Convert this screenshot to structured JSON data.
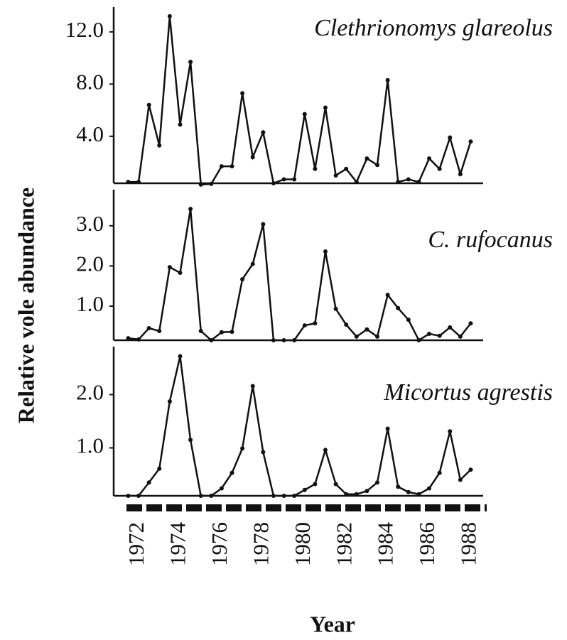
{
  "ylabel": "Relative vole abundance",
  "chart_data": [
    {
      "type": "line",
      "title": "Clethrionomys glareolus",
      "color": "#111111",
      "x": [
        1971.5,
        1972,
        1972.5,
        1973,
        1973.5,
        1974,
        1974.5,
        1975,
        1975.5,
        1976,
        1976.5,
        1977,
        1977.5,
        1978,
        1978.5,
        1979,
        1979.5,
        1980,
        1980.5,
        1981,
        1981.5,
        1982,
        1982.5,
        1983,
        1983.5,
        1984,
        1984.5,
        1985,
        1985.5,
        1986,
        1986.5,
        1987,
        1987.5,
        1988
      ],
      "values": [
        0.5,
        0.5,
        6.4,
        3.3,
        13.2,
        4.9,
        9.7,
        0.3,
        0.35,
        1.7,
        1.7,
        7.3,
        2.4,
        4.3,
        0.4,
        0.7,
        0.7,
        5.7,
        1.5,
        6.2,
        1.0,
        1.5,
        0.5,
        2.3,
        1.8,
        8.3,
        0.5,
        0.7,
        0.5,
        2.3,
        1.5,
        3.9,
        1.1,
        3.6
      ],
      "xlim": [
        1970.8,
        1988.6
      ],
      "ylim": [
        0.4,
        13.9
      ],
      "yticks": [
        {
          "value": 4,
          "label": "4.0"
        },
        {
          "value": 8,
          "label": "8.0"
        },
        {
          "value": 12,
          "label": "12.0"
        }
      ]
    },
    {
      "type": "line",
      "title": "C. rufocanus",
      "color": "#111111",
      "x": [
        1971.5,
        1972,
        1972.5,
        1973,
        1973.5,
        1974,
        1974.5,
        1975,
        1975.5,
        1976,
        1976.5,
        1977,
        1977.5,
        1978,
        1978.5,
        1979,
        1979.5,
        1980,
        1980.5,
        1981,
        1981.5,
        1982,
        1982.5,
        1983,
        1983.5,
        1984,
        1984.5,
        1985,
        1985.5,
        1986,
        1986.5,
        1987,
        1987.5,
        1988
      ],
      "values": [
        0.2,
        0.17,
        0.45,
        0.38,
        1.97,
        1.83,
        3.42,
        0.38,
        0.15,
        0.35,
        0.36,
        1.67,
        2.05,
        3.04,
        0.15,
        0.15,
        0.15,
        0.52,
        0.57,
        2.36,
        0.93,
        0.54,
        0.24,
        0.42,
        0.24,
        1.28,
        0.95,
        0.66,
        0.15,
        0.31,
        0.26,
        0.47,
        0.24,
        0.57
      ],
      "xlim": [
        1970.8,
        1988.6
      ],
      "ylim": [
        0.15,
        3.9
      ],
      "yticks": [
        {
          "value": 1,
          "label": "1.0"
        },
        {
          "value": 2,
          "label": "2.0"
        },
        {
          "value": 3,
          "label": "3.0"
        }
      ]
    },
    {
      "type": "line",
      "title": "Micortus agrestis",
      "color": "#111111",
      "x": [
        1971.5,
        1972,
        1972.5,
        1973,
        1973.5,
        1974,
        1974.5,
        1975,
        1975.5,
        1976,
        1976.5,
        1977,
        1977.5,
        1978,
        1978.5,
        1979,
        1979.5,
        1980,
        1980.5,
        1981,
        1981.5,
        1982,
        1982.5,
        1983,
        1983.5,
        1984,
        1984.5,
        1985,
        1985.5,
        1986,
        1986.5,
        1987,
        1987.5,
        1988
      ],
      "values": [
        0.1,
        0.1,
        0.35,
        0.61,
        1.87,
        2.72,
        1.15,
        0.1,
        0.1,
        0.24,
        0.53,
        0.99,
        2.16,
        0.92,
        0.1,
        0.1,
        0.1,
        0.21,
        0.32,
        0.96,
        0.32,
        0.13,
        0.13,
        0.19,
        0.35,
        1.36,
        0.27,
        0.17,
        0.13,
        0.24,
        0.53,
        1.31,
        0.4,
        0.59
      ],
      "xlim": [
        1970.8,
        1988.6
      ],
      "ylim": [
        0.1,
        2.9
      ],
      "yticks": [
        {
          "value": 1,
          "label": "1.0"
        },
        {
          "value": 2,
          "label": "2.0"
        }
      ],
      "xlabel": "Year",
      "xticks": [
        1972,
        1974,
        1976,
        1978,
        1980,
        1982,
        1984,
        1986,
        1988
      ]
    }
  ]
}
